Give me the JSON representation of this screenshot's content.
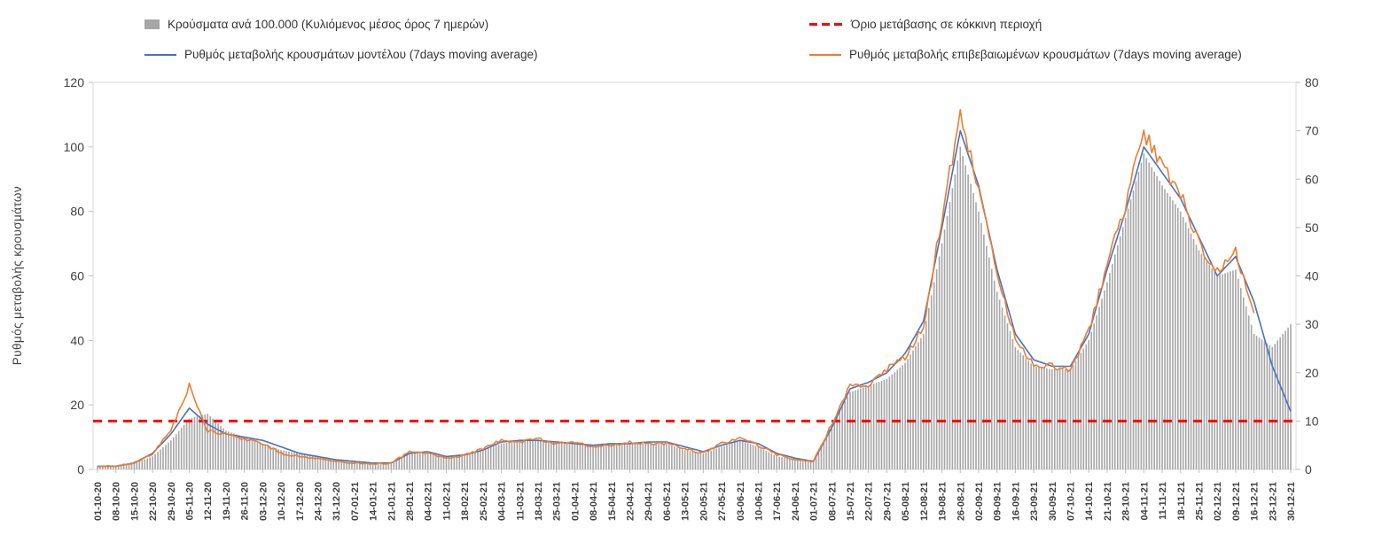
{
  "legend": {
    "position": "top"
  },
  "chart_data": {
    "type": "combo",
    "title": "",
    "ylabel": "Ρυθμός μεταβολής κρουσμάτων",
    "xlabel": "",
    "legend_position": "top",
    "grid": false,
    "x_tick_rotation": -90,
    "axes": {
      "left": {
        "min": 0,
        "max": 120,
        "step": 20
      },
      "right": {
        "min": 0,
        "max": 80,
        "step": 10
      }
    },
    "threshold": {
      "label": "Όριο μετάβασης σε κόκκινη περιοχή",
      "value": 15,
      "axis": "left",
      "color": "#ff0000"
    },
    "categories": [
      "01-10-20",
      "08-10-20",
      "15-10-20",
      "22-10-20",
      "29-10-20",
      "05-11-20",
      "12-11-20",
      "19-11-20",
      "26-11-20",
      "03-12-20",
      "10-12-20",
      "17-12-20",
      "24-12-20",
      "31-12-20",
      "07-01-21",
      "14-01-21",
      "21-01-21",
      "28-01-21",
      "04-02-21",
      "11-02-21",
      "18-02-21",
      "25-02-21",
      "04-03-21",
      "11-03-21",
      "18-03-21",
      "25-03-21",
      "01-04-21",
      "08-04-21",
      "15-04-21",
      "22-04-21",
      "29-04-21",
      "06-05-21",
      "13-05-21",
      "20-05-21",
      "27-05-21",
      "03-06-21",
      "10-06-21",
      "17-06-21",
      "24-06-21",
      "01-07-21",
      "08-07-21",
      "15-07-21",
      "22-07-21",
      "29-07-21",
      "05-08-21",
      "12-08-21",
      "19-08-21",
      "26-08-21",
      "02-09-21",
      "09-09-21",
      "16-09-21",
      "23-09-21",
      "30-09-21",
      "07-10-21",
      "14-10-21",
      "21-10-21",
      "28-10-21",
      "04-11-21",
      "11-11-21",
      "18-11-21",
      "25-11-21",
      "02-12-21",
      "09-12-21",
      "16-12-21",
      "23-12-21",
      "30-12-21"
    ],
    "series": [
      {
        "name": "Κρούσματα ανά 100.000 (Κυλιόμενος μέσος όρος 7 ημερών)",
        "type": "bar",
        "axis": "right",
        "color": "#a6a6a6",
        "values": [
          0.7,
          0.7,
          1.3,
          2.7,
          6,
          10.5,
          11.5,
          8,
          6.7,
          5.3,
          4,
          3.3,
          2.7,
          2,
          1.7,
          1.3,
          1.3,
          3.3,
          3.3,
          2.7,
          3.3,
          4,
          5.3,
          6,
          6,
          5.7,
          5.3,
          5,
          5.3,
          5.3,
          5.3,
          5.3,
          4,
          3.3,
          4.7,
          6,
          4.7,
          2.7,
          2,
          2,
          9.3,
          16,
          17.3,
          18.7,
          22,
          28,
          46.7,
          66.7,
          53.3,
          36.7,
          25.3,
          21.3,
          20.7,
          20.7,
          26.7,
          38.7,
          52,
          65.3,
          58.7,
          53.3,
          45.3,
          40,
          41.3,
          28,
          25.3,
          30
        ]
      },
      {
        "name": "Ρυθμός μεταβολής κρουσμάτων μοντέλου (7days moving average)",
        "type": "line",
        "axis": "left",
        "color": "#4472c4",
        "noise": false,
        "values": [
          1,
          1,
          2,
          5,
          11,
          19,
          14,
          11,
          10,
          9,
          7,
          5,
          4,
          3,
          2.5,
          2,
          2,
          5,
          5.5,
          4,
          4.5,
          6,
          8.5,
          9,
          9,
          8.5,
          8,
          7.5,
          8,
          8,
          8.5,
          8.5,
          7,
          5.5,
          7.5,
          9,
          8,
          5,
          3.5,
          2.5,
          13,
          25,
          27,
          30,
          36,
          46,
          75,
          105,
          88,
          62,
          42,
          34,
          32,
          32,
          42,
          62,
          80,
          100,
          92,
          84,
          72,
          60,
          66,
          52,
          32,
          18
        ]
      },
      {
        "name": "Ρυθμός μεταβολής επιβεβαιωμένων κρουσμάτων (7days moving average)",
        "type": "line",
        "axis": "left",
        "color": "#ed7d31",
        "noise": true,
        "values": [
          1,
          1,
          2,
          5,
          12,
          26,
          12,
          11,
          9.5,
          8,
          5,
          4,
          3.5,
          2.5,
          2,
          1.8,
          2,
          5.5,
          5,
          3.5,
          4.5,
          6.5,
          9,
          8.5,
          9.5,
          8,
          8.5,
          7,
          7.5,
          8.5,
          8,
          8,
          6.5,
          5,
          8,
          9.5,
          7.5,
          4.5,
          3,
          2.5,
          14,
          26,
          26,
          31,
          35,
          44,
          78,
          110,
          86,
          60,
          40,
          33,
          32,
          31,
          43,
          63,
          82,
          104,
          94,
          86,
          70,
          62,
          67,
          48,
          null,
          null
        ]
      }
    ]
  }
}
